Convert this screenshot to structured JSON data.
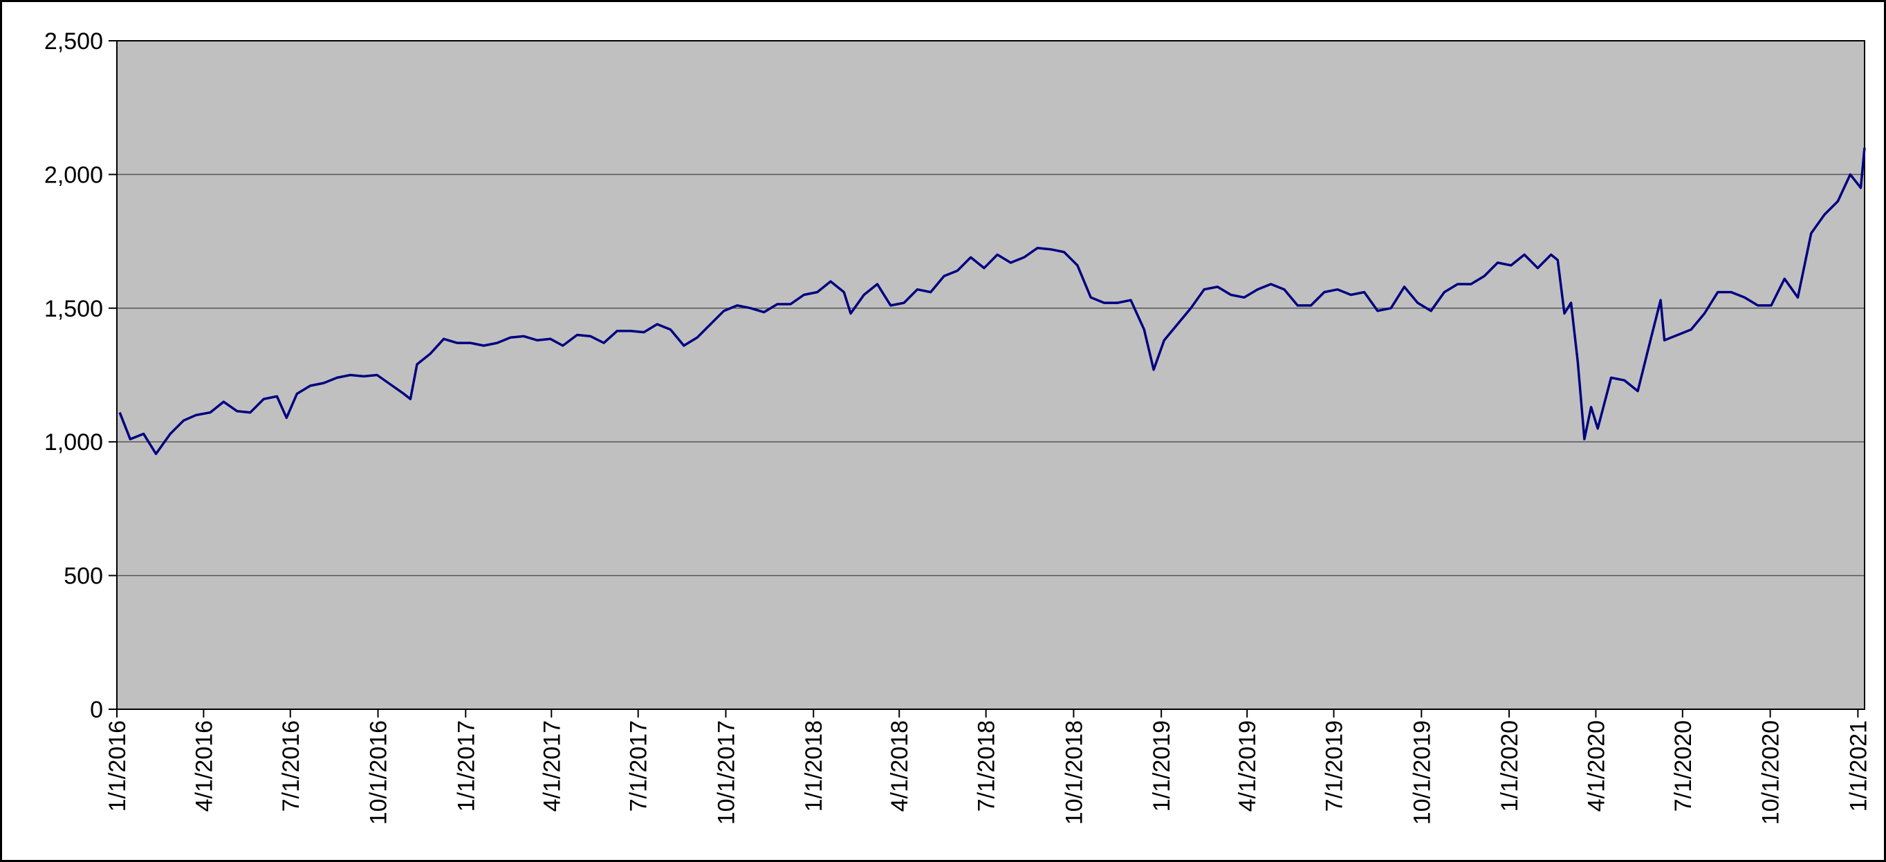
{
  "chart_data": {
    "type": "line",
    "color": "#000080",
    "grid": true,
    "xlim": [
      "1/1/2016",
      "1/8/2021"
    ],
    "xticks": [
      "1/1/2016",
      "4/1/2016",
      "7/1/2016",
      "10/1/2016",
      "1/1/2017",
      "4/1/2017",
      "7/1/2017",
      "10/1/2017",
      "1/1/2018",
      "4/1/2018",
      "7/1/2018",
      "10/1/2018",
      "1/1/2019",
      "4/1/2019",
      "7/1/2019",
      "10/1/2019",
      "1/1/2020",
      "4/1/2020",
      "7/1/2020",
      "10/1/2020",
      "1/1/2021"
    ],
    "ylim": [
      0,
      2500
    ],
    "yticks": [
      0,
      500,
      {
        "value": 1000,
        "label": "1,000"
      },
      {
        "value": 1500,
        "label": "1,500"
      },
      {
        "value": 2000,
        "label": "2,000"
      },
      {
        "value": 2500,
        "label": "2,500"
      }
    ],
    "x": [
      "1/4/2016",
      "1/15/2016",
      "1/29/2016",
      "2/11/2016",
      "2/26/2016",
      "3/11/2016",
      "3/24/2016",
      "4/8/2016",
      "4/22/2016",
      "5/6/2016",
      "5/20/2016",
      "6/3/2016",
      "6/17/2016",
      "6/27/2016",
      "7/8/2016",
      "7/22/2016",
      "8/5/2016",
      "8/19/2016",
      "9/2/2016",
      "9/16/2016",
      "9/30/2016",
      "10/14/2016",
      "10/28/2016",
      "11/4/2016",
      "11/11/2016",
      "11/25/2016",
      "12/9/2016",
      "12/23/2016",
      "1/6/2017",
      "1/20/2017",
      "2/3/2017",
      "2/17/2017",
      "3/3/2017",
      "3/17/2017",
      "3/31/2017",
      "4/13/2017",
      "4/28/2017",
      "5/12/2017",
      "5/26/2017",
      "6/9/2017",
      "6/23/2017",
      "7/7/2017",
      "7/21/2017",
      "8/4/2017",
      "8/18/2017",
      "9/1/2017",
      "9/15/2017",
      "9/29/2017",
      "10/13/2017",
      "10/27/2017",
      "11/10/2017",
      "11/24/2017",
      "12/8/2017",
      "12/22/2017",
      "1/5/2018",
      "1/19/2018",
      "2/2/2018",
      "2/9/2018",
      "2/23/2018",
      "3/9/2018",
      "3/23/2018",
      "4/6/2018",
      "4/20/2018",
      "5/4/2018",
      "5/18/2018",
      "6/1/2018",
      "6/15/2018",
      "6/29/2018",
      "7/13/2018",
      "7/27/2018",
      "8/10/2018",
      "8/24/2018",
      "9/7/2018",
      "9/21/2018",
      "10/5/2018",
      "10/19/2018",
      "11/2/2018",
      "11/16/2018",
      "11/30/2018",
      "12/14/2018",
      "12/24/2018",
      "1/4/2019",
      "1/18/2019",
      "2/1/2019",
      "2/15/2019",
      "3/1/2019",
      "3/15/2019",
      "3/29/2019",
      "4/12/2019",
      "4/26/2019",
      "5/10/2019",
      "5/24/2019",
      "6/7/2019",
      "6/21/2019",
      "7/5/2019",
      "7/19/2019",
      "8/2/2019",
      "8/16/2019",
      "8/30/2019",
      "9/13/2019",
      "9/27/2019",
      "10/11/2019",
      "10/25/2019",
      "11/8/2019",
      "11/22/2019",
      "12/6/2019",
      "12/20/2019",
      "1/3/2020",
      "1/17/2020",
      "1/31/2020",
      "2/14/2020",
      "2/21/2020",
      "2/28/2020",
      "3/6/2020",
      "3/13/2020",
      "3/20/2020",
      "3/27/2020",
      "4/3/2020",
      "4/17/2020",
      "5/1/2020",
      "5/15/2020",
      "5/29/2020",
      "6/8/2020",
      "6/12/2020",
      "6/26/2020",
      "7/10/2020",
      "7/24/2020",
      "8/7/2020",
      "8/21/2020",
      "9/4/2020",
      "9/18/2020",
      "10/2/2020",
      "10/16/2020",
      "10/30/2020",
      "11/13/2020",
      "11/27/2020",
      "12/11/2020",
      "12/24/2020",
      "1/4/2021",
      "1/8/2021"
    ],
    "values": [
      1110,
      1010,
      1030,
      955,
      1030,
      1080,
      1100,
      1110,
      1150,
      1115,
      1110,
      1160,
      1170,
      1090,
      1180,
      1210,
      1220,
      1240,
      1250,
      1245,
      1250,
      1215,
      1180,
      1160,
      1290,
      1330,
      1385,
      1370,
      1370,
      1360,
      1370,
      1390,
      1395,
      1380,
      1385,
      1360,
      1400,
      1395,
      1370,
      1415,
      1415,
      1410,
      1440,
      1420,
      1360,
      1390,
      1440,
      1490,
      1510,
      1500,
      1485,
      1515,
      1515,
      1550,
      1560,
      1600,
      1560,
      1480,
      1550,
      1590,
      1510,
      1520,
      1570,
      1560,
      1620,
      1640,
      1690,
      1650,
      1700,
      1670,
      1690,
      1725,
      1720,
      1710,
      1660,
      1540,
      1520,
      1520,
      1530,
      1420,
      1270,
      1380,
      1440,
      1500,
      1570,
      1580,
      1550,
      1540,
      1570,
      1590,
      1570,
      1510,
      1510,
      1560,
      1570,
      1550,
      1560,
      1490,
      1500,
      1580,
      1520,
      1490,
      1560,
      1590,
      1590,
      1620,
      1670,
      1660,
      1700,
      1650,
      1700,
      1680,
      1480,
      1520,
      1300,
      1010,
      1130,
      1050,
      1240,
      1230,
      1190,
      1390,
      1530,
      1380,
      1400,
      1420,
      1480,
      1560,
      1560,
      1540,
      1510,
      1510,
      1610,
      1540,
      1780,
      1850,
      1900,
      2000,
      1950,
      2100
    ]
  }
}
